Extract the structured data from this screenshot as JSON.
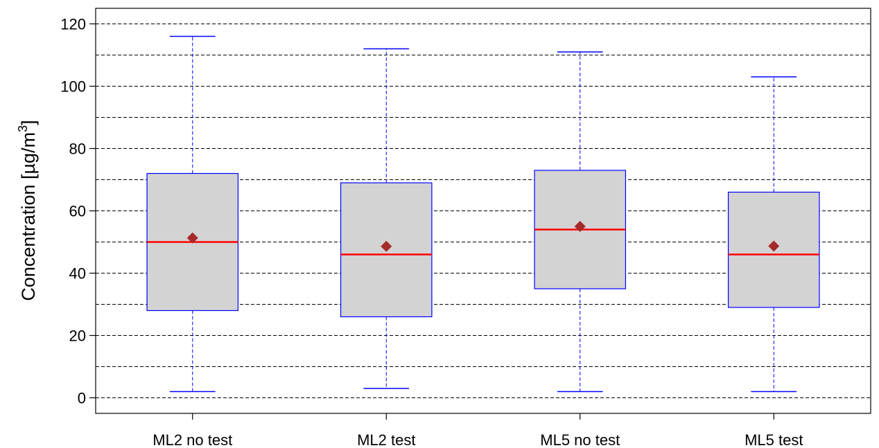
{
  "chart_data": {
    "type": "boxplot",
    "title": "",
    "xlabel": "",
    "ylabel": {
      "text": "Concentration [µg/m",
      "superscript": "3",
      "suffix": "]"
    },
    "ylim": [
      -5,
      125
    ],
    "yticks": [
      0,
      20,
      40,
      60,
      80,
      100,
      120
    ],
    "grid": {
      "on": true,
      "style": "dashed",
      "lines_every": 10
    },
    "categories": [
      "ML2 no test",
      "ML2 test",
      "ML5 no test",
      "ML5 test"
    ],
    "boxes": [
      {
        "name": "ML2 no test",
        "min": 2,
        "q1": 28,
        "median": 50,
        "q3": 72,
        "max": 116,
        "mean": 51.3
      },
      {
        "name": "ML2 test",
        "min": 3,
        "q1": 26,
        "median": 46,
        "q3": 69,
        "max": 112,
        "mean": 48.6
      },
      {
        "name": "ML5 no test",
        "min": 2,
        "q1": 35,
        "median": 54,
        "q3": 73,
        "max": 111,
        "mean": 55
      },
      {
        "name": "ML5 test",
        "min": 2,
        "q1": 29,
        "median": 46,
        "q3": 66,
        "max": 103,
        "mean": 48.7
      }
    ],
    "colors": {
      "box_fill": "#d3d3d3",
      "box_border": "#0000ff",
      "whisker": "#0000ff",
      "median": "#ff0000",
      "mean_marker": "#a52a2a",
      "grid": "#000000"
    }
  }
}
